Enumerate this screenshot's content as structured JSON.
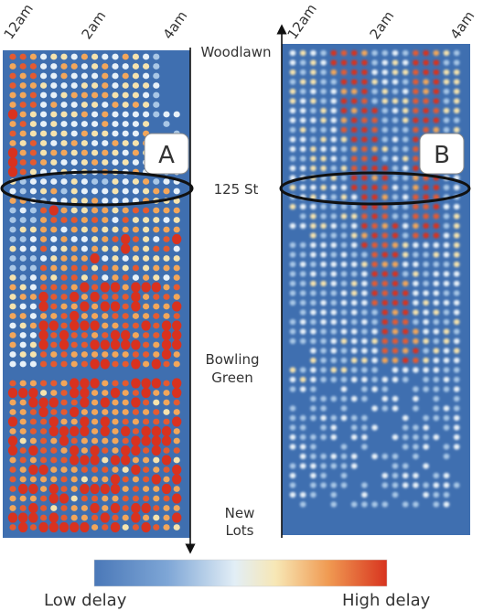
{
  "chart_data": [
    {
      "type": "heatmap",
      "panel_label": "A",
      "x_tick_labels": [
        "12am",
        "2am",
        "4am"
      ],
      "x_ticks": [
        0,
        2,
        4
      ],
      "x_range": [
        0,
        4.7
      ],
      "y_stations": [
        "Woodlawn",
        "125 St",
        "Bowling Green",
        "New Lots"
      ],
      "highlight": "125 St",
      "color_scale": [
        "#3e6fb0",
        "#6f9ad0",
        "#d4e6f1",
        "#f9e0a0",
        "#f4a44a",
        "#d8321f"
      ],
      "description_levels": "delay 0 (low) to 1 (high)"
    },
    {
      "type": "heatmap",
      "panel_label": "B",
      "x_tick_labels": [
        "12am",
        "2am",
        "4am"
      ],
      "x_ticks": [
        0,
        2,
        4
      ],
      "x_range": [
        0,
        4.7
      ],
      "y_stations": [
        "Woodlawn",
        "125 St",
        "Bowling Green",
        "New Lots"
      ],
      "highlight": "125 St",
      "color_scale": [
        "#3e6fb0",
        "#6f9ad0",
        "#d4e6f1",
        "#f9e0a0",
        "#f4a44a",
        "#d8321f"
      ]
    }
  ],
  "stations": {
    "woodlawn": "Woodlawn",
    "st125": "125 St",
    "bowling_1": "Bowling",
    "bowling_2": "Green",
    "newlots_1": "New",
    "newlots_2": "Lots"
  },
  "ticks": {
    "t0": "12am",
    "t2": "2am",
    "t4": "4am"
  },
  "panels": {
    "a": "A",
    "b": "B"
  },
  "legend": {
    "low": "Low delay",
    "high": "High delay"
  },
  "colors": {
    "background": "#3f6fb0",
    "high": "#d8321f",
    "low": "#3e6fb0"
  }
}
